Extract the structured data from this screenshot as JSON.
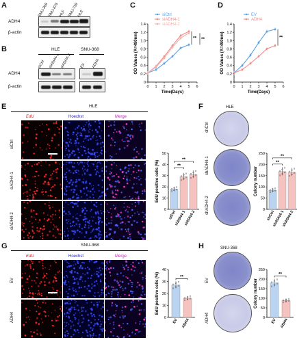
{
  "panel_letters": [
    "A",
    "B",
    "C",
    "D",
    "E",
    "F",
    "G",
    "H"
  ],
  "panelA": {
    "lanes": [
      "SNU-368",
      "SNU-878",
      "HLF",
      "SNU-739",
      "HLE"
    ],
    "rows": [
      "ADH4",
      "β-actin"
    ]
  },
  "panelB": {
    "group1": "HLE",
    "group2": "SNU-368",
    "lanes1": [
      "siCtrl",
      "siADH4-1",
      "siADH4-2"
    ],
    "lanes2": [
      "EV",
      "ADH4"
    ],
    "rows": [
      "ADH4",
      "β-actin"
    ]
  },
  "chart_C": {
    "type": "line",
    "title": "",
    "xlabel": "Time(Days)",
    "ylabel": "OD Values (A=490nm)",
    "x": [
      0,
      1,
      2,
      3,
      4,
      5
    ],
    "xlim": [
      0,
      6
    ],
    "ylim": [
      0,
      1.4
    ],
    "xticks": [
      "0",
      "1",
      "2",
      "3",
      "4",
      "5",
      "6"
    ],
    "yticks": [
      "0",
      "0.2",
      "0.4",
      "0.6",
      "0.8",
      "1.0",
      "1.2",
      "1.4"
    ],
    "series": [
      {
        "name": "siCtrl",
        "color": "#5aa0e6",
        "values": [
          0.22,
          0.3,
          0.45,
          0.62,
          0.82,
          0.9
        ]
      },
      {
        "name": "siADH4-1",
        "color": "#f08c8c",
        "values": [
          0.22,
          0.38,
          0.62,
          0.88,
          1.12,
          1.22
        ]
      },
      {
        "name": "siADH4-2",
        "color": "#f5b0a8",
        "values": [
          0.22,
          0.36,
          0.58,
          0.84,
          1.06,
          1.18
        ]
      }
    ],
    "sig": [
      "**",
      "**"
    ]
  },
  "chart_D": {
    "type": "line",
    "title": "",
    "xlabel": "Time(Days)",
    "ylabel": "OD Values (A=490nm)",
    "x": [
      0,
      1,
      2,
      3,
      4,
      5
    ],
    "xlim": [
      0,
      6
    ],
    "ylim": [
      0,
      1.4
    ],
    "xticks": [
      "0",
      "1",
      "2",
      "3",
      "4",
      "5",
      "6"
    ],
    "yticks": [
      "0",
      "0.2",
      "0.4",
      "0.6",
      "0.8",
      "1.0",
      "1.2",
      "1.4"
    ],
    "series": [
      {
        "name": "EV",
        "color": "#5aa0e6",
        "values": [
          0.22,
          0.4,
          0.65,
          0.95,
          1.22,
          1.27
        ]
      },
      {
        "name": "ADH4",
        "color": "#f08c8c",
        "values": [
          0.22,
          0.3,
          0.45,
          0.62,
          0.8,
          0.88
        ]
      }
    ],
    "sig": [
      "**"
    ]
  },
  "panelE": {
    "title": "HLE",
    "cols": [
      "EdU",
      "Hoechst",
      "Merge"
    ],
    "rows": [
      "siCtrl",
      "siADH4-1",
      "siADH4-2"
    ]
  },
  "chart_E": {
    "type": "bar",
    "ylabel": "EdU positive cells (%)",
    "categories": [
      "siCtrl",
      "siADH4-1",
      "siADH4-2"
    ],
    "values": [
      18,
      29,
      31
    ],
    "colors": [
      "#b9d3f0",
      "#f5c2bf",
      "#f5c2bf"
    ],
    "ylim": [
      0,
      50
    ],
    "yticks": [
      "0",
      "10",
      "20",
      "30",
      "40",
      "50"
    ],
    "sig": [
      "**",
      "**"
    ]
  },
  "panelF": {
    "title": "HLE",
    "rows": [
      "shCtrl",
      "shADH4-1",
      "shADH4-2"
    ]
  },
  "chart_F": {
    "type": "bar",
    "ylabel": "Colony number",
    "categories": [
      "shCtrl",
      "shADH4-1",
      "shADH4-2"
    ],
    "values": [
      85,
      168,
      165
    ],
    "colors": [
      "#b9d3f0",
      "#f5c2bf",
      "#f5c2bf"
    ],
    "ylim": [
      0,
      250
    ],
    "yticks": [
      "0",
      "50",
      "100",
      "150",
      "200",
      "250"
    ],
    "sig": [
      "**",
      "**"
    ]
  },
  "panelG": {
    "title": "SNU-368",
    "cols": [
      "EdU",
      "Hoechst",
      "Merge"
    ],
    "rows": [
      "EV",
      "ADH4"
    ]
  },
  "chart_G": {
    "type": "bar",
    "ylabel": "EdU positive cells (%)",
    "categories": [
      "EV",
      "ADH4"
    ],
    "values": [
      27,
      16
    ],
    "colors": [
      "#b9d3f0",
      "#f5c2bf"
    ],
    "ylim": [
      0,
      40
    ],
    "yticks": [
      "0",
      "10",
      "20",
      "30",
      "40"
    ],
    "sig": [
      "**"
    ]
  },
  "panelH": {
    "title": "SNU-368",
    "rows": [
      "EV",
      "ADH4"
    ]
  },
  "chart_H": {
    "type": "bar",
    "ylabel": "Colony number",
    "categories": [
      "EV",
      "ADH4"
    ],
    "values": [
      180,
      88
    ],
    "colors": [
      "#b9d3f0",
      "#f5c2bf"
    ],
    "ylim": [
      0,
      250
    ],
    "yticks": [
      "0",
      "50",
      "100",
      "150",
      "200",
      "250"
    ],
    "sig": [
      "**"
    ]
  },
  "chart_data": [
    {
      "type": "line",
      "title": "",
      "xlabel": "Time(Days)",
      "ylabel": "OD Values (A=490nm)",
      "x": [
        0,
        1,
        2,
        3,
        4,
        5
      ],
      "series": [
        {
          "name": "siCtrl",
          "values": [
            0.22,
            0.3,
            0.45,
            0.62,
            0.82,
            0.9
          ]
        },
        {
          "name": "siADH4-1",
          "values": [
            0.22,
            0.38,
            0.62,
            0.88,
            1.12,
            1.22
          ]
        },
        {
          "name": "siADH4-2",
          "values": [
            0.22,
            0.36,
            0.58,
            0.84,
            1.06,
            1.18
          ]
        }
      ],
      "xlim": [
        0,
        6
      ],
      "ylim": [
        0,
        1.4
      ]
    },
    {
      "type": "line",
      "title": "",
      "xlabel": "Time(Days)",
      "ylabel": "OD Values (A=490nm)",
      "x": [
        0,
        1,
        2,
        3,
        4,
        5
      ],
      "series": [
        {
          "name": "EV",
          "values": [
            0.22,
            0.4,
            0.65,
            0.95,
            1.22,
            1.27
          ]
        },
        {
          "name": "ADH4",
          "values": [
            0.22,
            0.3,
            0.45,
            0.62,
            0.8,
            0.88
          ]
        }
      ],
      "xlim": [
        0,
        6
      ],
      "ylim": [
        0,
        1.4
      ]
    },
    {
      "type": "bar",
      "title": "",
      "ylabel": "EdU positive cells (%)",
      "categories": [
        "siCtrl",
        "siADH4-1",
        "siADH4-2"
      ],
      "values": [
        18,
        29,
        31
      ],
      "ylim": [
        0,
        50
      ]
    },
    {
      "type": "bar",
      "title": "",
      "ylabel": "Colony number",
      "categories": [
        "shCtrl",
        "shADH4-1",
        "shADH4-2"
      ],
      "values": [
        85,
        168,
        165
      ],
      "ylim": [
        0,
        250
      ]
    },
    {
      "type": "bar",
      "title": "",
      "ylabel": "EdU positive cells (%)",
      "categories": [
        "EV",
        "ADH4"
      ],
      "values": [
        27,
        16
      ],
      "ylim": [
        0,
        40
      ]
    },
    {
      "type": "bar",
      "title": "",
      "ylabel": "Colony number",
      "categories": [
        "EV",
        "ADH4"
      ],
      "values": [
        180,
        88
      ],
      "ylim": [
        0,
        250
      ]
    }
  ]
}
